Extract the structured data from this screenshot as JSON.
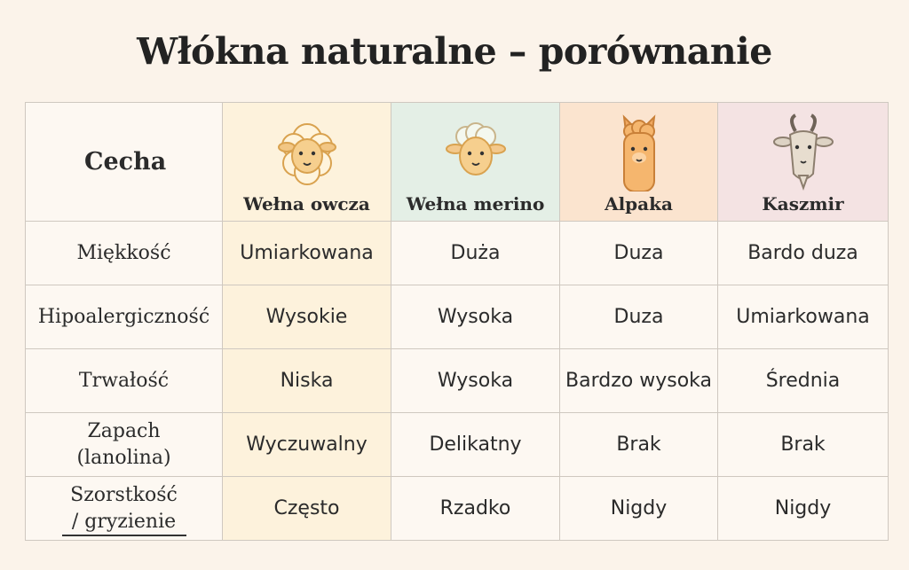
{
  "title": "Włókna naturalne – porównanie",
  "header": {
    "feature_label": "Cecha",
    "columns": [
      {
        "label": "Wełna owcza",
        "icon": "sheep-icon"
      },
      {
        "label": "Wełna merino",
        "icon": "merino-sheep-icon"
      },
      {
        "label": "Alpaka",
        "icon": "alpaca-icon"
      },
      {
        "label": "Kaszmir",
        "icon": "goat-icon"
      }
    ]
  },
  "rows": [
    {
      "feature": "Miękkość",
      "values": [
        "Umiarkowana",
        "Duża",
        "Duza",
        "Bardo duza"
      ]
    },
    {
      "feature": "Hipoalergiczność",
      "values": [
        "Wysokie",
        "Wysoka",
        "Duza",
        "Umiarkowana"
      ]
    },
    {
      "feature": "Trwałość",
      "values": [
        "Niska",
        "Wysoka",
        "Bardzo wysoka",
        "Średnia"
      ]
    },
    {
      "feature_line1": "Zapach",
      "feature_line2": "(lanolina)",
      "values": [
        "Wyczuwalny",
        "Delikatny",
        "Brak",
        "Brak"
      ]
    },
    {
      "feature_line1": "Szorstkość",
      "feature_line2": "/ gryzienie",
      "values": [
        "Często",
        "Rzadko",
        "Nigdy",
        "Nigdy"
      ]
    }
  ]
}
